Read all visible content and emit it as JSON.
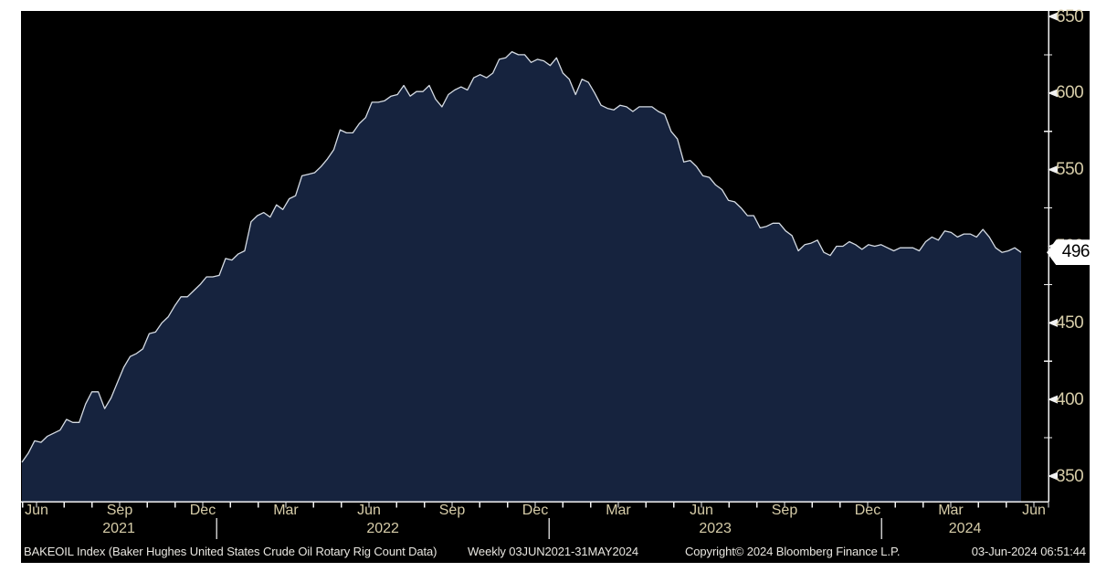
{
  "chart_data": {
    "type": "area",
    "title": "BAKEOIL Index (Baker Hughes United States Crude Oil Rotary Rig Count Data)",
    "frequency_label": "Weekly 03JUN2021-31MAY2024",
    "series_name": "BAKEOIL Index",
    "x_unit": "weekly",
    "x_range": [
      "03JUN2021",
      "31MAY2024"
    ],
    "ylim": [
      350,
      650
    ],
    "grid": false,
    "legend_position": "none",
    "y_axis_side": "right",
    "y_ticks_major": [
      650,
      600,
      550,
      500,
      450,
      400,
      350
    ],
    "y_ticks_minor": [
      625,
      575,
      525,
      475,
      425,
      375
    ],
    "x_tick_labels": [
      {
        "label": "Jun",
        "month": 0
      },
      {
        "label": "Sep",
        "month": 3
      },
      {
        "label": "Dec",
        "month": 6
      },
      {
        "label": "Mar",
        "month": 9
      },
      {
        "label": "Jun",
        "month": 12
      },
      {
        "label": "Sep",
        "month": 15
      },
      {
        "label": "Dec",
        "month": 18
      },
      {
        "label": "Mar",
        "month": 21
      },
      {
        "label": "Jun",
        "month": 24
      },
      {
        "label": "Sep",
        "month": 27
      },
      {
        "label": "Dec",
        "month": 30
      },
      {
        "label": "Mar",
        "month": 33
      },
      {
        "label": "Jun",
        "month": 36
      }
    ],
    "year_labels": [
      "2021",
      "2022",
      "2023",
      "2024"
    ],
    "year_separators_month": [
      7,
      19,
      31
    ],
    "last_value": 496,
    "values": [
      359,
      365,
      373,
      372,
      376,
      378,
      380,
      387,
      385,
      385,
      397,
      405,
      405,
      394,
      401,
      411,
      421,
      428,
      430,
      433,
      443,
      444,
      450,
      454,
      461,
      467,
      467,
      471,
      475,
      480,
      480,
      481,
      492,
      491,
      495,
      497,
      516,
      520,
      522,
      519,
      527,
      524,
      531,
      533,
      546,
      547,
      548,
      552,
      557,
      563,
      576,
      574,
      574,
      580,
      584,
      594,
      594,
      595,
      598,
      599,
      605,
      598,
      601,
      601,
      605,
      596,
      591,
      599,
      602,
      604,
      602,
      610,
      612,
      610,
      613,
      622,
      623,
      627,
      625,
      625,
      620,
      622,
      621,
      618,
      623,
      613,
      609,
      599,
      609,
      607,
      600,
      592,
      590,
      589,
      592,
      591,
      588,
      591,
      591,
      591,
      588,
      586,
      575,
      570,
      555,
      556,
      552,
      546,
      545,
      540,
      537,
      530,
      529,
      525,
      520,
      520,
      512,
      513,
      515,
      515,
      510,
      507,
      497,
      501,
      502,
      504,
      496,
      494,
      500,
      500,
      503,
      501,
      498,
      501,
      500,
      501,
      499,
      497,
      499,
      499,
      499,
      497,
      503,
      506,
      504,
      510,
      509,
      506,
      508,
      508,
      506,
      511,
      506,
      499,
      496,
      497,
      499,
      496
    ]
  },
  "badge": {
    "value": "496"
  },
  "footer": {
    "copyright": "Copyright© 2024 Bloomberg Finance L.P.",
    "timestamp": "03-Jun-2024 06:51:44"
  },
  "colors": {
    "page_background": "#ffffff",
    "panel_background": "#000000",
    "area_fill": "#16233e",
    "area_line": "#d5dbe3",
    "axis": "#f2f2f2",
    "tick_label": "#d6cca8",
    "footer_text": "#e8e6e0",
    "badge_background": "#ffffff",
    "badge_text": "#000000"
  }
}
